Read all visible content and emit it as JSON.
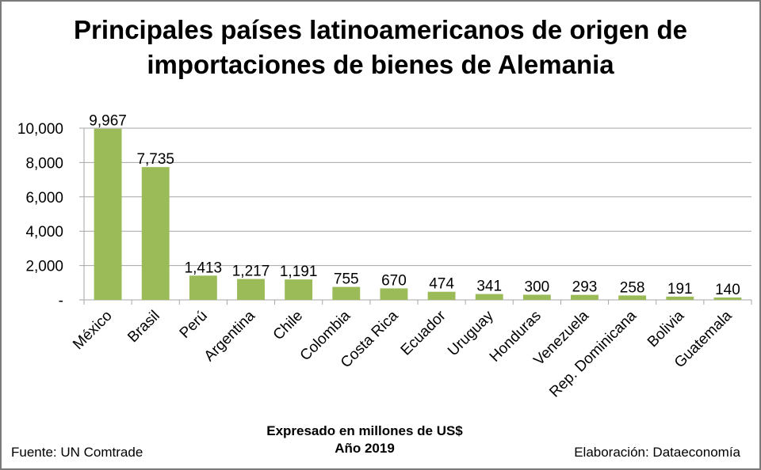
{
  "chart_data": {
    "type": "bar",
    "title_line1": "Principales países latinoamericanos de origen de",
    "title_line2": "importaciones de bienes de Alemania",
    "xlabel_line1": "Expresado en millones de US$",
    "xlabel_line2": "Año 2019",
    "categories": [
      "México",
      "Brasil",
      "Perú",
      "Argentina",
      "Chile",
      "Colombia",
      "Costa Rica",
      "Ecuador",
      "Uruguay",
      "Honduras",
      "Venezuela",
      "Rep. Dominicana",
      "Bolivia",
      "Guatemala"
    ],
    "values": [
      9967,
      7735,
      1413,
      1217,
      1191,
      755,
      670,
      474,
      341,
      300,
      293,
      258,
      191,
      140
    ],
    "data_labels": [
      "9,967",
      "7,735",
      "1,413",
      "1,217",
      "1,191",
      "755",
      "670",
      "474",
      "341",
      "300",
      "293",
      "258",
      "191",
      "140"
    ],
    "yticks": [
      0,
      2000,
      4000,
      6000,
      8000,
      10000
    ],
    "ytick_labels": [
      "-",
      "2,000",
      "4,000",
      "6,000",
      "8,000",
      "10,000"
    ],
    "ylim": [
      0,
      10000
    ],
    "grid": true,
    "bar_color": "#9bbb59",
    "grid_color": "#a6a6a6"
  },
  "footer": {
    "source": "Fuente: UN Comtrade",
    "credit": "Elaboración: Dataeconomía"
  }
}
